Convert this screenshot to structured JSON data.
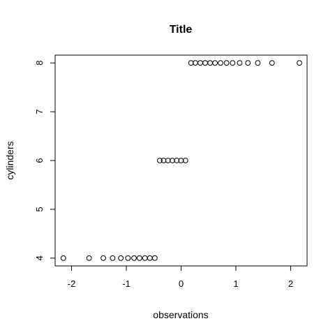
{
  "chart_data": {
    "type": "scatter",
    "title": "Title",
    "xlabel": "observations",
    "ylabel": "cylinders",
    "xlim": [
      -2.3,
      2.3
    ],
    "ylim": [
      3.84,
      8.16
    ],
    "x_ticks": [
      -2,
      -1,
      0,
      1,
      2
    ],
    "x_tick_labels": [
      "-2",
      "-1",
      "0",
      "1",
      "2"
    ],
    "y_ticks": [
      4,
      5,
      6,
      7,
      8
    ],
    "y_tick_labels": [
      "4",
      "5",
      "6",
      "7",
      "8"
    ],
    "grid": false,
    "marker": "open-circle",
    "point_color": "#000000",
    "x": [
      -2.15,
      -1.68,
      -1.42,
      -1.25,
      -1.1,
      -0.97,
      -0.86,
      -0.76,
      -0.66,
      -0.57,
      -0.48,
      -0.39,
      -0.32,
      -0.24,
      -0.16,
      -0.08,
      0.0,
      0.08,
      0.18,
      0.26,
      0.35,
      0.44,
      0.53,
      0.62,
      0.72,
      0.83,
      0.94,
      1.07,
      1.22,
      1.4,
      1.66,
      2.16
    ],
    "y": [
      4,
      4,
      4,
      4,
      4,
      4,
      4,
      4,
      4,
      4,
      4,
      6,
      6,
      6,
      6,
      6,
      6,
      6,
      8,
      8,
      8,
      8,
      8,
      8,
      8,
      8,
      8,
      8,
      8,
      8,
      8,
      8
    ]
  }
}
